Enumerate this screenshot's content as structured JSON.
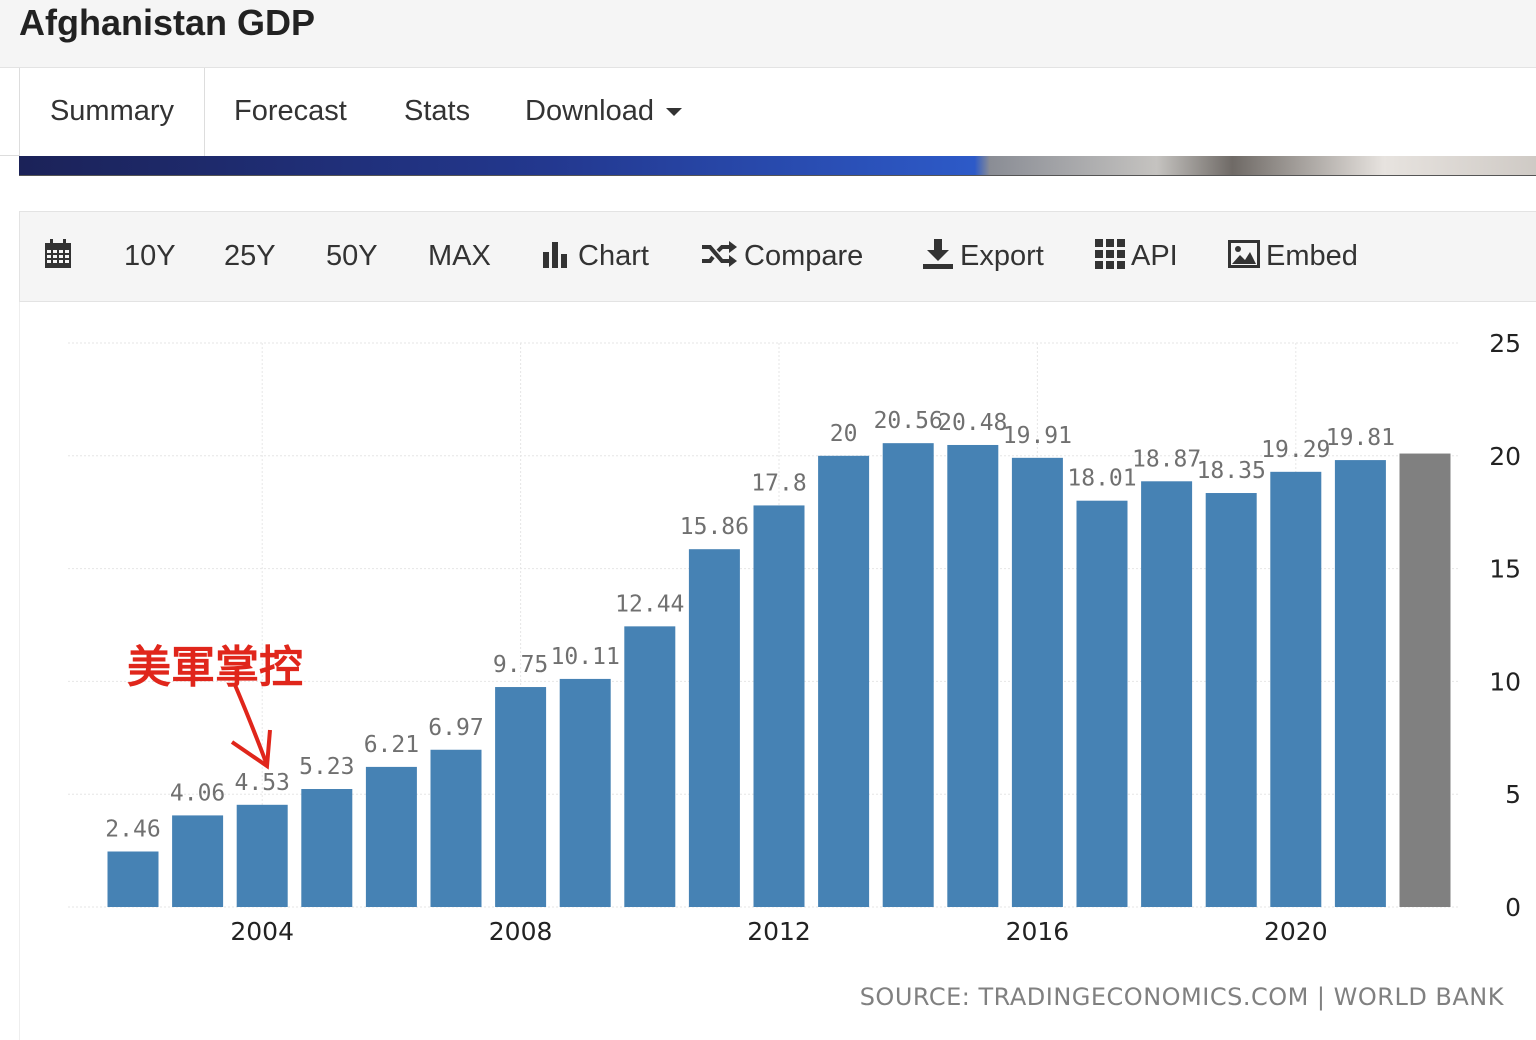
{
  "page": {
    "title": "Afghanistan GDP"
  },
  "tabs": [
    {
      "label": "Summary",
      "active": true
    },
    {
      "label": "Forecast"
    },
    {
      "label": "Stats"
    },
    {
      "label": "Download"
    }
  ],
  "toolbar": {
    "calendar_icon": "calendar-icon",
    "range_10y": "10Y",
    "range_25y": "25Y",
    "range_50y": "50Y",
    "range_max": "MAX",
    "chart": "Chart",
    "compare": "Compare",
    "export": "Export",
    "api": "API",
    "embed": "Embed"
  },
  "annotation": {
    "text": "美軍掌控",
    "color": "#e0261b"
  },
  "colors": {
    "bar": "#4682b4",
    "forecast_bar": "#808080",
    "label": "#707070",
    "axis": "#222222"
  },
  "chart_data": {
    "type": "bar",
    "x": [
      2002,
      2003,
      2004,
      2005,
      2006,
      2007,
      2008,
      2009,
      2010,
      2011,
      2012,
      2013,
      2014,
      2015,
      2016,
      2017,
      2018,
      2019,
      2020,
      2021
    ],
    "values": [
      2.46,
      4.06,
      4.53,
      5.23,
      6.21,
      6.97,
      9.75,
      10.11,
      12.44,
      15.86,
      17.8,
      20,
      20.56,
      20.48,
      19.91,
      18.01,
      18.87,
      18.35,
      19.29,
      19.81
    ],
    "data_labels": [
      "2.46",
      "4.06",
      "4.53",
      "5.23",
      "6.21",
      "6.97",
      "9.75",
      "10.11",
      "12.44",
      "15.86",
      "17.8",
      "20",
      "20.56",
      "20.48",
      "19.91",
      "18.01",
      "18.87",
      "18.35",
      "19.29",
      "19.81"
    ],
    "forecast": {
      "x": 2022,
      "value": 20.1
    },
    "x_ticks": [
      "2004",
      "2008",
      "2012",
      "2016",
      "2020"
    ],
    "y_ticks": [
      "0",
      "5",
      "10",
      "15",
      "20",
      "25"
    ],
    "ylim": [
      0,
      25
    ],
    "y_axis_side": "right",
    "grid": true,
    "source": "SOURCE: TRADINGECONOMICS.COM | WORLD BANK"
  }
}
